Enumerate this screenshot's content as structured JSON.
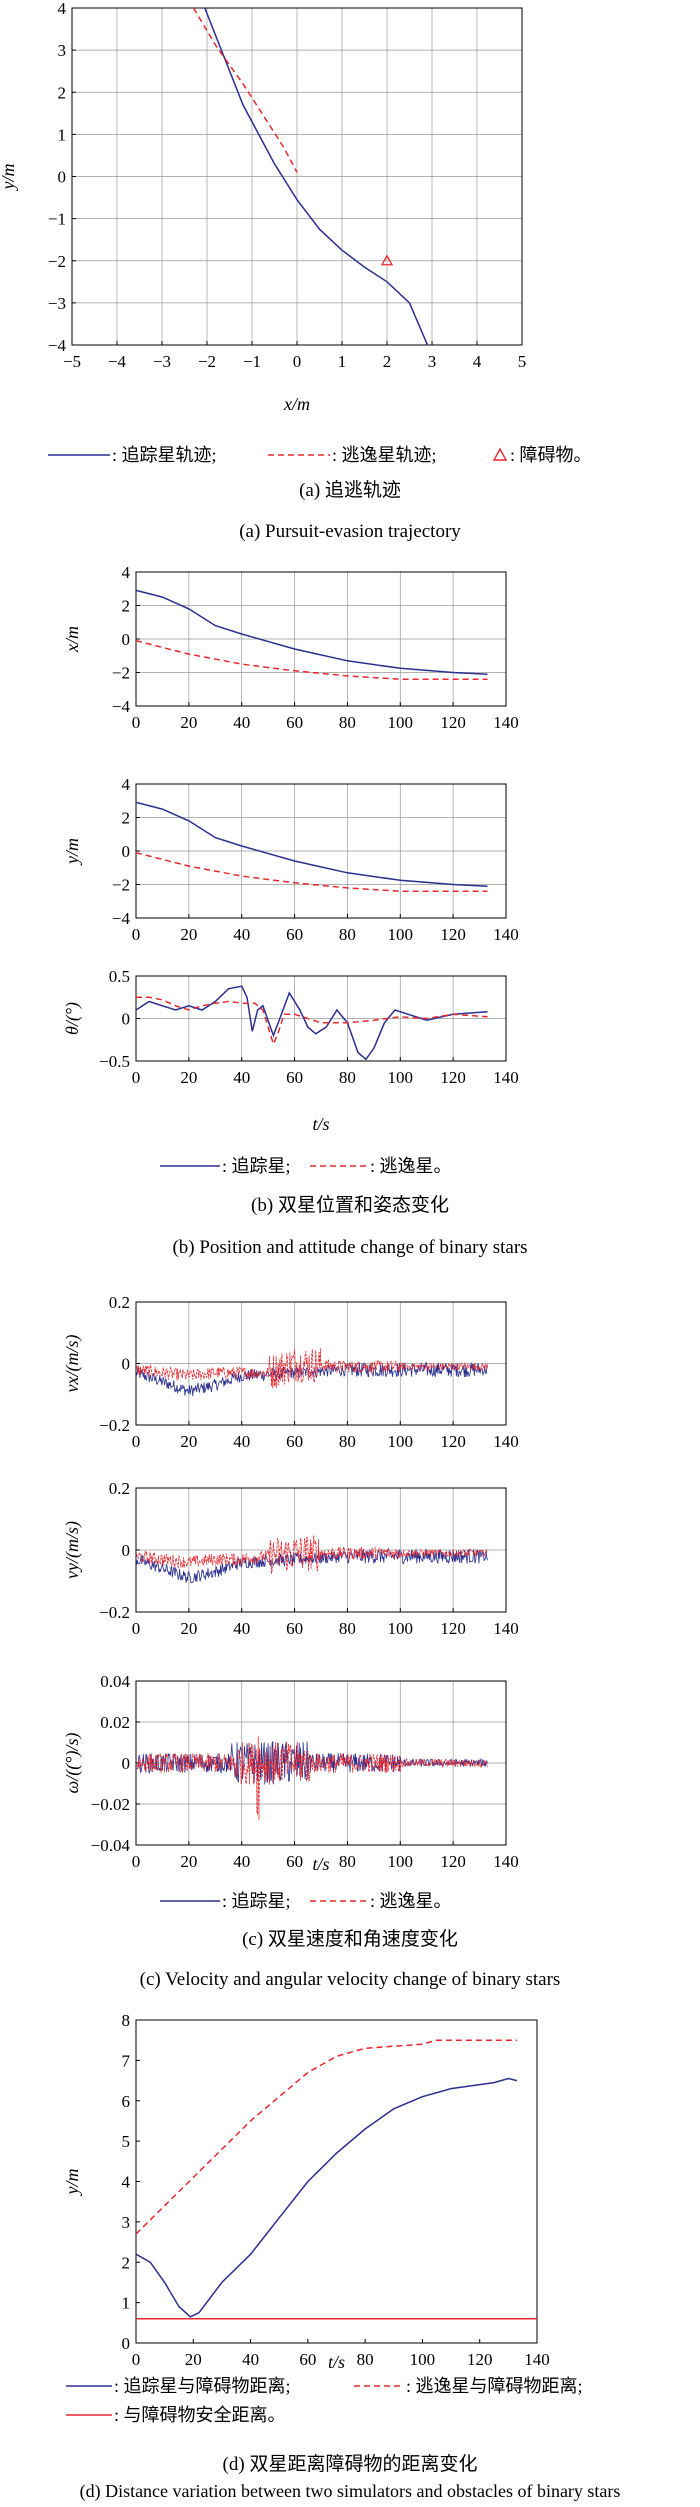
{
  "colors": {
    "pursuer": "#2b2f8f",
    "evader": "#e8282d",
    "safe": "#e8282d",
    "obstacle": "#e8282d"
  },
  "captions": {
    "a_cn": "(a) 追逃轨迹",
    "a_en": "(a) Pursuit-evasion trajectory",
    "b_cn": "(b) 双星位置和姿态变化",
    "b_en": "(b) Position and attitude change of binary stars",
    "c_cn": "(c) 双星速度和角速度变化",
    "c_en": "(c) Velocity and angular velocity change of binary stars",
    "d_cn": "(d) 双星距离障碍物的距离变化",
    "d_en": "(d) Distance variation between two simulators and obstacles of binary stars"
  },
  "legends": {
    "a": [
      ": 追踪星轨迹;",
      ": 逃逸星轨迹;",
      ": 障碍物。"
    ],
    "b": [
      ": 追踪星;",
      ": 逃逸星。"
    ],
    "c": [
      ": 追踪星;",
      ": 逃逸星。"
    ],
    "d": [
      ": 追踪星与障碍物距离;",
      ": 逃逸星与障碍物距离;",
      ": 与障碍物安全距离。"
    ]
  },
  "chart_data": [
    {
      "id": "a",
      "type": "line",
      "xlabel": "x/m",
      "ylabel": "y/m",
      "xlim": [
        -5,
        5
      ],
      "ylim": [
        -4,
        4
      ],
      "xticks": [
        -5,
        -4,
        -3,
        -2,
        -1,
        0,
        1,
        2,
        3,
        4,
        5
      ],
      "yticks": [
        4,
        3,
        2,
        1,
        0,
        -1,
        -2,
        -3,
        -4
      ],
      "grid": true,
      "series": [
        {
          "key": "pursuer",
          "style": "solid",
          "points": [
            [
              -2.05,
              4.0
            ],
            [
              -1.2,
              1.7
            ],
            [
              -0.5,
              0.3
            ],
            [
              0.0,
              -0.55
            ],
            [
              0.5,
              -1.25
            ],
            [
              1.0,
              -1.75
            ],
            [
              1.5,
              -2.15
            ],
            [
              2.0,
              -2.5
            ],
            [
              2.5,
              -3.0
            ],
            [
              2.9,
              -4.0
            ]
          ]
        },
        {
          "key": "evader",
          "style": "dashed",
          "points": [
            [
              -2.3,
              4.0
            ],
            [
              -1.8,
              3.1
            ],
            [
              -1.2,
              2.2
            ],
            [
              -0.6,
              1.2
            ],
            [
              -0.3,
              0.7
            ],
            [
              0.0,
              0.1
            ]
          ]
        }
      ],
      "markers": [
        {
          "key": "obstacle",
          "symbol": "triangle",
          "x": 2.0,
          "y": -2.0
        }
      ]
    },
    {
      "id": "b_x",
      "type": "line",
      "xlabel": "",
      "ylabel": "x/m",
      "xlim": [
        0,
        140
      ],
      "ylim": [
        -4,
        4
      ],
      "yticks": [
        4,
        2,
        0,
        -2,
        -4
      ],
      "grid": true,
      "series": [
        {
          "key": "pursuer",
          "style": "solid",
          "points": [
            [
              0,
              2.9
            ],
            [
              10,
              2.5
            ],
            [
              20,
              1.8
            ],
            [
              30,
              0.8
            ],
            [
              40,
              0.3
            ],
            [
              60,
              -0.6
            ],
            [
              80,
              -1.3
            ],
            [
              100,
              -1.75
            ],
            [
              120,
              -2.0
            ],
            [
              133,
              -2.1
            ]
          ]
        },
        {
          "key": "evader",
          "style": "dashed",
          "points": [
            [
              0,
              -0.1
            ],
            [
              20,
              -0.9
            ],
            [
              40,
              -1.5
            ],
            [
              60,
              -1.9
            ],
            [
              80,
              -2.2
            ],
            [
              100,
              -2.4
            ],
            [
              133,
              -2.4
            ]
          ]
        }
      ]
    },
    {
      "id": "b_y",
      "type": "line",
      "xlabel": "",
      "ylabel": "y/m",
      "xlim": [
        0,
        140
      ],
      "ylim": [
        -4,
        4
      ],
      "yticks": [
        4,
        2,
        0,
        -2,
        -4
      ],
      "grid": true,
      "series": [
        {
          "key": "pursuer",
          "style": "solid",
          "points": [
            [
              0,
              2.9
            ],
            [
              10,
              2.5
            ],
            [
              20,
              1.8
            ],
            [
              30,
              0.8
            ],
            [
              40,
              0.3
            ],
            [
              60,
              -0.6
            ],
            [
              80,
              -1.3
            ],
            [
              100,
              -1.75
            ],
            [
              120,
              -2.0
            ],
            [
              133,
              -2.1
            ]
          ]
        },
        {
          "key": "evader",
          "style": "dashed",
          "points": [
            [
              0,
              -0.1
            ],
            [
              20,
              -0.9
            ],
            [
              40,
              -1.5
            ],
            [
              60,
              -1.9
            ],
            [
              80,
              -2.2
            ],
            [
              100,
              -2.4
            ],
            [
              133,
              -2.4
            ]
          ]
        }
      ]
    },
    {
      "id": "b_theta",
      "type": "line",
      "xlabel": "t/s",
      "ylabel": "θ/(°)",
      "xlim": [
        0,
        140
      ],
      "ylim": [
        -0.5,
        0.5
      ],
      "xticks": [
        0,
        20,
        40,
        60,
        80,
        100,
        120,
        140
      ],
      "yticks": [
        0.5,
        0,
        -0.5
      ],
      "grid": true,
      "series": [
        {
          "key": "pursuer",
          "style": "solid",
          "points": [
            [
              0,
              0.1
            ],
            [
              5,
              0.2
            ],
            [
              10,
              0.15
            ],
            [
              15,
              0.1
            ],
            [
              20,
              0.15
            ],
            [
              25,
              0.1
            ],
            [
              30,
              0.2
            ],
            [
              35,
              0.35
            ],
            [
              40,
              0.38
            ],
            [
              42,
              0.25
            ],
            [
              44,
              -0.15
            ],
            [
              46,
              0.1
            ],
            [
              48,
              0.15
            ],
            [
              52,
              -0.2
            ],
            [
              55,
              0.05
            ],
            [
              58,
              0.3
            ],
            [
              62,
              0.1
            ],
            [
              65,
              -0.1
            ],
            [
              68,
              -0.18
            ],
            [
              72,
              -0.1
            ],
            [
              76,
              0.1
            ],
            [
              80,
              -0.05
            ],
            [
              84,
              -0.4
            ],
            [
              87,
              -0.48
            ],
            [
              90,
              -0.35
            ],
            [
              94,
              -0.05
            ],
            [
              98,
              0.1
            ],
            [
              103,
              0.05
            ],
            [
              110,
              -0.02
            ],
            [
              120,
              0.05
            ],
            [
              133,
              0.08
            ]
          ]
        },
        {
          "key": "evader",
          "style": "dashed",
          "points": [
            [
              0,
              0.25
            ],
            [
              5,
              0.25
            ],
            [
              10,
              0.22
            ],
            [
              15,
              0.15
            ],
            [
              20,
              0.1
            ],
            [
              25,
              0.15
            ],
            [
              30,
              0.18
            ],
            [
              35,
              0.2
            ],
            [
              40,
              0.18
            ],
            [
              45,
              0.18
            ],
            [
              48,
              0.1
            ],
            [
              50,
              -0.1
            ],
            [
              52,
              -0.3
            ],
            [
              54,
              -0.15
            ],
            [
              56,
              0.05
            ],
            [
              60,
              0.05
            ],
            [
              70,
              -0.05
            ],
            [
              80,
              -0.05
            ],
            [
              90,
              -0.02
            ],
            [
              100,
              0.02
            ],
            [
              110,
              0.0
            ],
            [
              120,
              0.05
            ],
            [
              133,
              0.02
            ]
          ]
        }
      ]
    },
    {
      "id": "c_vx",
      "type": "line",
      "xlabel": "",
      "ylabel": "vx/(m/s)",
      "xlim": [
        0,
        140
      ],
      "ylim": [
        -0.2,
        0.2
      ],
      "yticks": [
        0.2,
        0,
        -0.2
      ],
      "grid": true,
      "series": [
        {
          "key": "pursuer",
          "style": "solid",
          "noisy": true,
          "points": [
            [
              0,
              -0.03
            ],
            [
              10,
              -0.06
            ],
            [
              20,
              -0.09
            ],
            [
              30,
              -0.07
            ],
            [
              40,
              -0.04
            ],
            [
              60,
              -0.03
            ],
            [
              80,
              -0.02
            ],
            [
              100,
              -0.02
            ],
            [
              133,
              -0.02
            ]
          ]
        },
        {
          "key": "evader",
          "style": "dashed",
          "noisy": true,
          "points": [
            [
              0,
              -0.02
            ],
            [
              10,
              -0.03
            ],
            [
              20,
              -0.04
            ],
            [
              30,
              -0.03
            ],
            [
              40,
              -0.03
            ],
            [
              50,
              -0.03
            ],
            [
              60,
              0.0
            ],
            [
              80,
              -0.01
            ],
            [
              100,
              -0.01
            ],
            [
              133,
              -0.01
            ]
          ]
        }
      ]
    },
    {
      "id": "c_vy",
      "type": "line",
      "xlabel": "",
      "ylabel": "vy/(m/s)",
      "xlim": [
        0,
        140
      ],
      "ylim": [
        -0.2,
        0.2
      ],
      "yticks": [
        0.2,
        0,
        -0.2
      ],
      "grid": true,
      "series": [
        {
          "key": "pursuer",
          "style": "solid",
          "noisy": true,
          "points": [
            [
              0,
              -0.03
            ],
            [
              10,
              -0.06
            ],
            [
              20,
              -0.09
            ],
            [
              30,
              -0.07
            ],
            [
              40,
              -0.04
            ],
            [
              60,
              -0.03
            ],
            [
              80,
              -0.02
            ],
            [
              100,
              -0.02
            ],
            [
              133,
              -0.02
            ]
          ]
        },
        {
          "key": "evader",
          "style": "dashed",
          "noisy": true,
          "points": [
            [
              0,
              -0.02
            ],
            [
              10,
              -0.03
            ],
            [
              20,
              -0.04
            ],
            [
              30,
              -0.03
            ],
            [
              40,
              -0.03
            ],
            [
              50,
              -0.02
            ],
            [
              60,
              -0.01
            ],
            [
              80,
              -0.01
            ],
            [
              100,
              -0.01
            ],
            [
              133,
              -0.01
            ]
          ]
        }
      ]
    },
    {
      "id": "c_omega",
      "type": "line",
      "xlabel": "t/s",
      "ylabel": "ω/((°)/s)",
      "xlim": [
        0,
        140
      ],
      "ylim": [
        -0.04,
        0.04
      ],
      "xticks": [
        0,
        20,
        40,
        60,
        80,
        100,
        120,
        140
      ],
      "yticks": [
        0.04,
        0.02,
        0,
        -0.02,
        -0.04
      ],
      "grid": true,
      "series": [
        {
          "key": "pursuer",
          "style": "solid",
          "noisy": true,
          "points": [
            [
              0,
              0.0
            ],
            [
              40,
              0.0
            ],
            [
              60,
              0.0
            ],
            [
              100,
              0.0
            ],
            [
              133,
              0.0
            ]
          ]
        },
        {
          "key": "evader",
          "style": "dashed",
          "noisy": true,
          "points": [
            [
              0,
              0.0
            ],
            [
              40,
              0.0
            ],
            [
              46,
              0.0
            ],
            [
              60,
              0.0
            ],
            [
              100,
              0.0
            ],
            [
              133,
              0.0
            ]
          ]
        }
      ]
    },
    {
      "id": "d",
      "type": "line",
      "xlabel": "t/s",
      "ylabel": "y/m",
      "xlim": [
        0,
        140
      ],
      "ylim": [
        0,
        8
      ],
      "xticks": [
        0,
        20,
        40,
        60,
        80,
        100,
        120,
        140
      ],
      "yticks": [
        8,
        7,
        6,
        5,
        4,
        3,
        2,
        1,
        0
      ],
      "grid": false,
      "series": [
        {
          "key": "pursuer",
          "style": "solid",
          "points": [
            [
              0,
              2.2
            ],
            [
              5,
              2.0
            ],
            [
              10,
              1.5
            ],
            [
              15,
              0.9
            ],
            [
              19,
              0.65
            ],
            [
              22,
              0.75
            ],
            [
              30,
              1.5
            ],
            [
              40,
              2.2
            ],
            [
              50,
              3.1
            ],
            [
              60,
              4.0
            ],
            [
              70,
              4.7
            ],
            [
              80,
              5.3
            ],
            [
              90,
              5.8
            ],
            [
              100,
              6.1
            ],
            [
              110,
              6.3
            ],
            [
              120,
              6.4
            ],
            [
              125,
              6.45
            ],
            [
              130,
              6.55
            ],
            [
              133,
              6.5
            ]
          ]
        },
        {
          "key": "evader",
          "style": "dashed",
          "points": [
            [
              0,
              2.7
            ],
            [
              10,
              3.4
            ],
            [
              20,
              4.1
            ],
            [
              30,
              4.8
            ],
            [
              40,
              5.5
            ],
            [
              50,
              6.1
            ],
            [
              60,
              6.7
            ],
            [
              70,
              7.1
            ],
            [
              80,
              7.3
            ],
            [
              90,
              7.35
            ],
            [
              100,
              7.4
            ],
            [
              105,
              7.5
            ],
            [
              120,
              7.5
            ],
            [
              133,
              7.5
            ]
          ]
        },
        {
          "key": "safe",
          "style": "solid",
          "points": [
            [
              0,
              0.6
            ],
            [
              140,
              0.6
            ]
          ]
        }
      ]
    }
  ]
}
